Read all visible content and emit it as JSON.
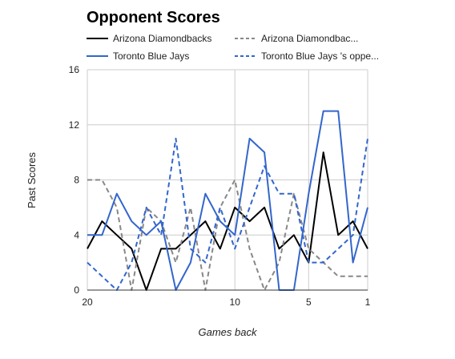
{
  "chart_data": {
    "type": "line",
    "title": "Opponent Scores",
    "xlabel": "Games back",
    "ylabel": "Past Scores",
    "x": [
      20,
      19,
      18,
      17,
      16,
      15,
      14,
      13,
      12,
      11,
      10,
      9,
      8,
      7,
      6,
      5,
      4,
      3,
      2,
      1
    ],
    "x_reversed": true,
    "xlim": [
      20,
      1
    ],
    "ylim": [
      0,
      16
    ],
    "x_ticks": [
      {
        "value": 20,
        "label": "20"
      },
      {
        "value": 10,
        "label": "10"
      },
      {
        "value": 5,
        "label": "5"
      },
      {
        "value": 1,
        "label": "1"
      }
    ],
    "y_ticks": [
      {
        "value": 0,
        "label": "0"
      },
      {
        "value": 4,
        "label": "4"
      },
      {
        "value": 8,
        "label": "8"
      },
      {
        "value": 12,
        "label": "12"
      },
      {
        "value": 16,
        "label": "16"
      }
    ],
    "grid": true,
    "legend_position": "top",
    "series": [
      {
        "name": "Arizona Diamondbacks",
        "color": "#000000",
        "dash": "solid",
        "values": [
          3,
          5,
          4,
          3,
          0,
          3,
          3,
          4,
          5,
          3,
          6,
          5,
          6,
          3,
          4,
          2,
          10,
          4,
          5,
          3
        ]
      },
      {
        "name": "Arizona Diamondbac...",
        "color": "#888888",
        "dash": "dashed",
        "values": [
          8,
          8,
          6,
          0,
          6,
          5,
          2,
          6,
          0,
          6,
          8,
          3,
          0,
          2,
          7,
          3,
          2,
          1,
          1,
          1
        ]
      },
      {
        "name": "Toronto Blue Jays",
        "color": "#3366cc",
        "dash": "solid",
        "values": [
          4,
          4,
          7,
          5,
          4,
          5,
          0,
          2,
          7,
          5,
          4,
          11,
          10,
          0,
          0,
          7,
          13,
          13,
          2,
          6
        ]
      },
      {
        "name": "Toronto Blue Jays 's oppe...",
        "color": "#3366cc",
        "dash": "dashed",
        "values": [
          2,
          1,
          0,
          2,
          6,
          4,
          11,
          3,
          2,
          6,
          3,
          6,
          9,
          7,
          7,
          2,
          2,
          3,
          4,
          11
        ]
      }
    ]
  }
}
